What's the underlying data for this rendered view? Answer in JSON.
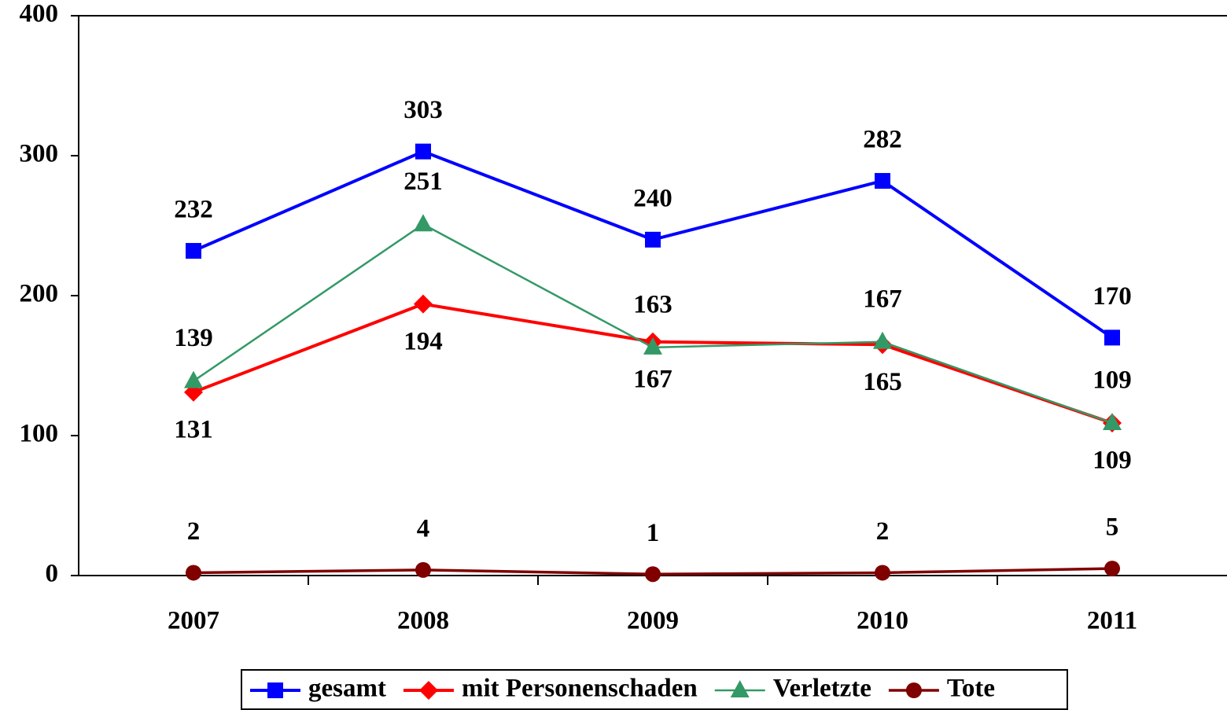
{
  "chart_data": {
    "type": "line",
    "categories": [
      "2007",
      "2008",
      "2009",
      "2010",
      "2011"
    ],
    "series": [
      {
        "name": "gesamt",
        "color": "#0000ff",
        "marker": "square",
        "values": [
          232,
          303,
          240,
          282,
          170
        ]
      },
      {
        "name": "mit Personenschaden",
        "color": "#ff0000",
        "marker": "diamond",
        "values": [
          131,
          194,
          167,
          165,
          109
        ]
      },
      {
        "name": "Verletzte",
        "color": "#339966",
        "marker": "triangle",
        "values": [
          139,
          251,
          163,
          167,
          109
        ]
      },
      {
        "name": "Tote",
        "color": "#800000",
        "marker": "circle",
        "values": [
          2,
          4,
          1,
          2,
          5
        ]
      }
    ],
    "ylim": [
      0,
      400
    ],
    "yticks": [
      0,
      100,
      200,
      300,
      400
    ],
    "legend": "bottom"
  }
}
